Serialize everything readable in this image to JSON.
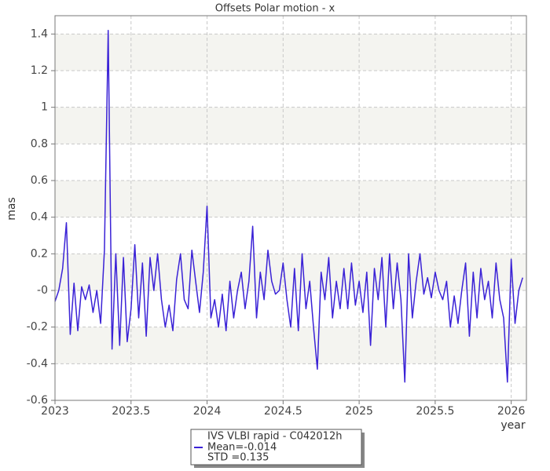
{
  "chart_data": {
    "type": "line",
    "title": "Offsets Polar motion - x",
    "y_label": "mas",
    "x_label": "year",
    "xlim": [
      2023,
      2026.1
    ],
    "xticks": [
      2023,
      2023.5,
      2024,
      2024.5,
      2025,
      2025.5,
      2026
    ],
    "ylim": [
      -0.6,
      1.5
    ],
    "yticks": [
      -0.6,
      -0.4,
      -0.2,
      {
        "value": 0,
        "label": "-0"
      },
      0.2,
      0.4,
      0.6,
      0.8,
      1,
      1.2,
      1.4
    ],
    "grid": true,
    "banded": true,
    "legend_position": "bottom",
    "legend_notes": [
      "Mean=-0.014",
      "STD =0.135"
    ],
    "x": [
      2023.0,
      2023.025,
      2023.05,
      2023.075,
      2023.1,
      2023.125,
      2023.15,
      2023.175,
      2023.2,
      2023.225,
      2023.25,
      2023.275,
      2023.3,
      2023.325,
      2023.35,
      2023.375,
      2023.4,
      2023.425,
      2023.45,
      2023.475,
      2023.5,
      2023.525,
      2023.55,
      2023.575,
      2023.6,
      2023.625,
      2023.65,
      2023.675,
      2023.7,
      2023.725,
      2023.75,
      2023.775,
      2023.8,
      2023.825,
      2023.85,
      2023.875,
      2023.9,
      2023.925,
      2023.95,
      2023.975,
      2024.0,
      2024.025,
      2024.05,
      2024.075,
      2024.1,
      2024.125,
      2024.15,
      2024.175,
      2024.2,
      2024.225,
      2024.25,
      2024.275,
      2024.3,
      2024.325,
      2024.35,
      2024.375,
      2024.4,
      2024.425,
      2024.45,
      2024.475,
      2024.5,
      2024.525,
      2024.55,
      2024.575,
      2024.6,
      2024.625,
      2024.65,
      2024.675,
      2024.7,
      2024.725,
      2024.75,
      2024.775,
      2024.8,
      2024.825,
      2024.85,
      2024.875,
      2024.9,
      2024.925,
      2024.95,
      2024.975,
      2025.0,
      2025.025,
      2025.05,
      2025.075,
      2025.1,
      2025.125,
      2025.15,
      2025.175,
      2025.2,
      2025.225,
      2025.25,
      2025.275,
      2025.3,
      2025.325,
      2025.35,
      2025.375,
      2025.4,
      2025.425,
      2025.45,
      2025.475,
      2025.5,
      2025.525,
      2025.55,
      2025.575,
      2025.6,
      2025.625,
      2025.65,
      2025.675,
      2025.7,
      2025.725,
      2025.75,
      2025.775,
      2025.8,
      2025.825,
      2025.85,
      2025.875,
      2025.9,
      2025.925,
      2025.95,
      2025.975,
      2026.0,
      2026.025,
      2026.05,
      2026.075
    ],
    "series": [
      {
        "name": "IVS VLBI rapid - C042012h",
        "color": "#3a22d6",
        "values": [
          -0.06,
          0.0,
          0.12,
          0.37,
          -0.24,
          0.04,
          -0.22,
          0.02,
          -0.05,
          0.03,
          -0.12,
          0.0,
          -0.18,
          0.22,
          1.42,
          -0.32,
          0.2,
          -0.3,
          0.18,
          -0.28,
          -0.1,
          0.25,
          -0.15,
          0.15,
          -0.25,
          0.18,
          0.0,
          0.2,
          -0.05,
          -0.2,
          -0.08,
          -0.22,
          0.06,
          0.2,
          -0.05,
          -0.1,
          0.22,
          0.05,
          -0.12,
          0.1,
          0.46,
          -0.15,
          -0.05,
          -0.2,
          -0.02,
          -0.22,
          0.05,
          -0.15,
          0.0,
          0.1,
          -0.1,
          0.05,
          0.35,
          -0.15,
          0.1,
          -0.05,
          0.22,
          0.05,
          -0.02,
          0.0,
          0.15,
          -0.05,
          -0.2,
          0.12,
          -0.22,
          0.2,
          -0.1,
          0.05,
          -0.2,
          -0.43,
          0.1,
          -0.05,
          0.18,
          -0.15,
          0.05,
          -0.1,
          0.12,
          -0.1,
          0.15,
          -0.08,
          0.05,
          -0.12,
          0.1,
          -0.3,
          0.12,
          -0.05,
          0.18,
          -0.2,
          0.2,
          -0.1,
          0.15,
          -0.05,
          -0.5,
          0.2,
          -0.15,
          0.05,
          0.2,
          -0.02,
          0.07,
          -0.04,
          0.1,
          0.0,
          -0.05,
          0.05,
          -0.2,
          -0.03,
          -0.18,
          0.0,
          0.15,
          -0.25,
          0.1,
          -0.15,
          0.12,
          -0.05,
          0.05,
          -0.15,
          0.15,
          -0.05,
          -0.15,
          -0.5,
          0.17,
          -0.18,
          0.0,
          0.07
        ]
      }
    ]
  }
}
